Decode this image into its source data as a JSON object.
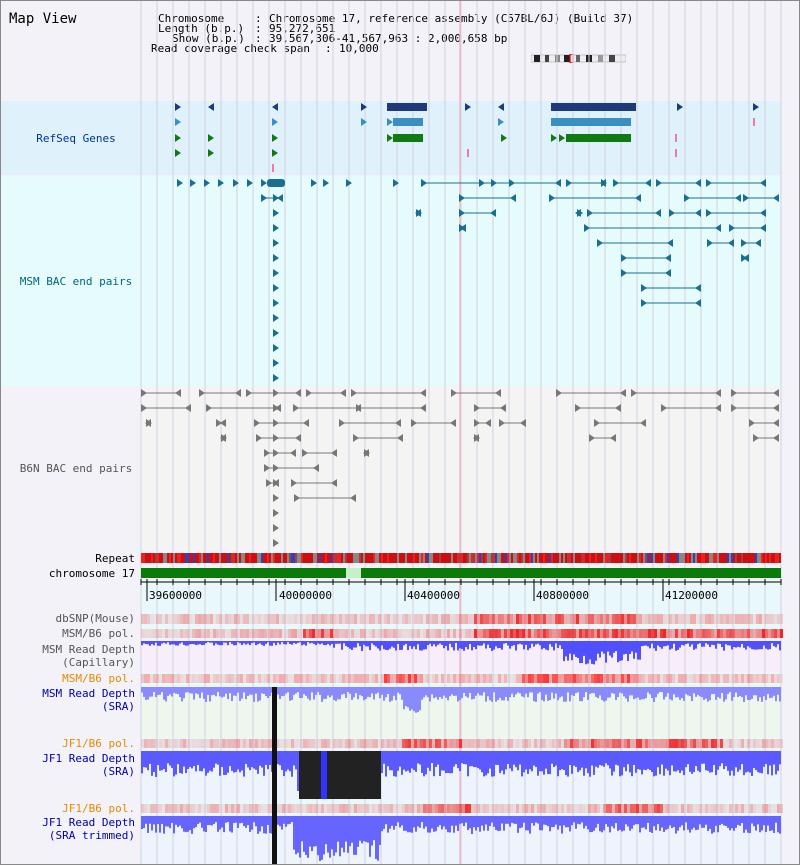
{
  "view_title": "Map View",
  "header": {
    "chromosome_key": "Chromosome",
    "chromosome_val": "Chromosome 17, reference assembly (C57BL/6J) (Build 37)",
    "length_key": "Length (b.p.)",
    "length_val": "95,272,651",
    "show_key": "Show (b.p.)",
    "show_val": "39,567,306-41,567,963 : 2,000,658 bp",
    "coverage_key": "Read coverage check span",
    "coverage_val": "10,000"
  },
  "tracks": {
    "refseq": "RefSeq Genes",
    "msm_bac": "MSM BAC end pairs",
    "b6n_bac": "B6N BAC end pairs",
    "repeat": "Repeat",
    "chromosome": "chromosome 17",
    "dbsnp": "dbSNP(Mouse)",
    "msm_b6_pol_1": "MSM/B6 pol.",
    "msm_depth_cap_1": "MSM Read Depth",
    "msm_depth_cap_2": "(Capillary)",
    "msm_b6_pol_2": "MSM/B6 pol.",
    "msm_depth_sra_1": "MSM Read Depth",
    "msm_depth_sra_2": "(SRA)",
    "jf1_b6_pol_1": "JF1/B6 pol.",
    "jf1_depth_sra_1": "JF1 Read Depth",
    "jf1_depth_sra_2": "(SRA)",
    "jf1_b6_pol_2": "JF1/B6 pol.",
    "jf1_depth_trim_1": "JF1 Read Depth",
    "jf1_depth_trim_2": "(SRA trimmed)"
  },
  "axis": {
    "ticks": [
      "39600000",
      "40000000",
      "40400000",
      "40800000",
      "41200000"
    ]
  },
  "colors": {
    "refseq_bg": "#dff1fb",
    "msm_bg": "#e6fbfb",
    "b6n_bg": "#f4f4f4",
    "gene_navy": "#1f3a7a",
    "gene_blue": "#3a8fc0",
    "gene_green": "#127a12",
    "bac_teal": "#1a6f8f",
    "bac_gray": "#777777",
    "chrom_green": "#0a7a0a",
    "depth_blue": "#4747ff",
    "depth_dark": "#222222"
  }
}
